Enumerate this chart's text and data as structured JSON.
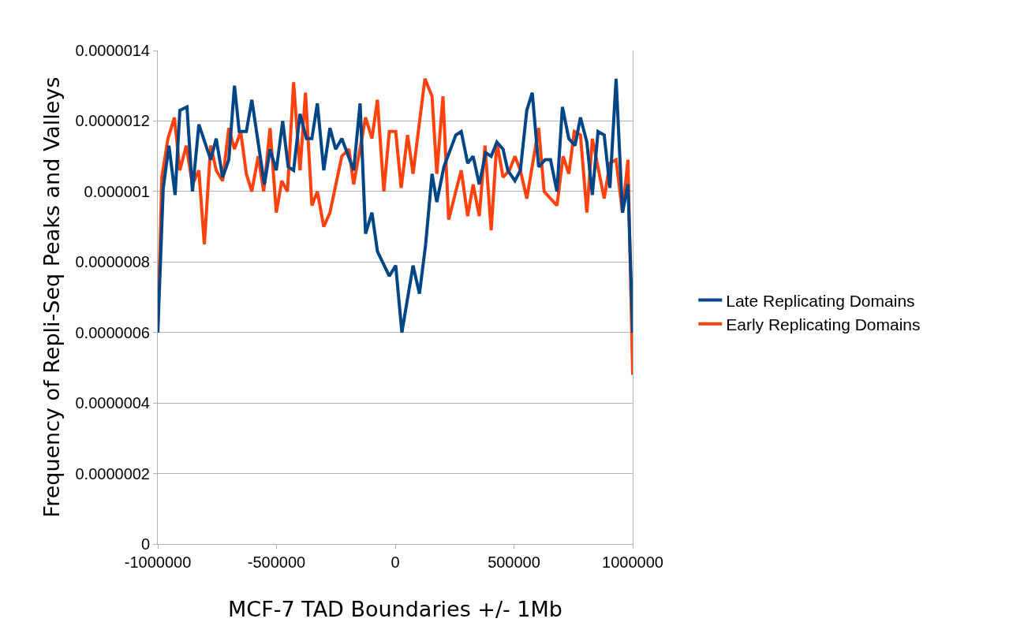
{
  "chart_data": {
    "type": "line",
    "xlabel": "MCF-7 TAD Boundaries +/- 1Mb",
    "ylabel": "Frequency of Repli-Seq Peaks and Valleys",
    "xlim": [
      -1000000,
      1000000
    ],
    "xticks": [
      -1000000,
      -500000,
      0,
      500000,
      1000000
    ],
    "ylim": [
      0,
      1.4e-06
    ],
    "yticks": [
      0,
      {
        "value": 2e-07,
        "label": "0.0000002"
      },
      {
        "value": 4e-07,
        "label": "0.0000004"
      },
      {
        "value": 6e-07,
        "label": "0.0000006"
      },
      {
        "value": 8e-07,
        "label": "0.0000008"
      },
      {
        "value": 1e-06,
        "label": "0.000001"
      },
      {
        "value": 1.2e-06,
        "label": "0.0000012"
      },
      {
        "value": 1.4e-06,
        "label": "0.0000014"
      }
    ],
    "grid": "y",
    "legend": "right",
    "marker": "none",
    "line_style": "solid",
    "series": [
      {
        "name": "Late Replicating Domains",
        "color": "#004586",
        "x": [
          -1000000,
          -977000,
          -953000,
          -927000,
          -907000,
          -877000,
          -854000,
          -827000,
          -777000,
          -754000,
          -727000,
          -701000,
          -677000,
          -657000,
          -627000,
          -604000,
          -551000,
          -527000,
          -501000,
          -474000,
          -451000,
          -428000,
          -401000,
          -374000,
          -351000,
          -328000,
          -301000,
          -275000,
          -251000,
          -225000,
          -175000,
          -148000,
          -125000,
          -98000,
          -75000,
          -25000,
          2000,
          28000,
          75000,
          102000,
          128000,
          155000,
          175000,
          205000,
          255000,
          278000,
          305000,
          328000,
          354000,
          381000,
          404000,
          428000,
          454000,
          474000,
          504000,
          527000,
          554000,
          577000,
          604000,
          631000,
          654000,
          681000,
          704000,
          731000,
          757000,
          780000,
          807000,
          830000,
          854000,
          880000,
          904000,
          930000,
          957000,
          980000,
          1000000
        ],
        "values": [
          6e-07,
          1.01e-06,
          1.13e-06,
          9.9e-07,
          1.23e-06,
          1.24e-06,
          1e-06,
          1.19e-06,
          1.09e-06,
          1.15e-06,
          1.04e-06,
          1.09e-06,
          1.3e-06,
          1.17e-06,
          1.17e-06,
          1.26e-06,
          1.02e-06,
          1.12e-06,
          1.06e-06,
          1.2e-06,
          1.07e-06,
          1.06e-06,
          1.22e-06,
          1.15e-06,
          1.15e-06,
          1.25e-06,
          1.06e-06,
          1.18e-06,
          1.12e-06,
          1.15e-06,
          1.06e-06,
          1.25e-06,
          8.8e-07,
          9.4e-07,
          8.3e-07,
          7.6e-07,
          7.9e-07,
          6e-07,
          7.9e-07,
          7.1e-07,
          8.5e-07,
          1.05e-06,
          9.7e-07,
          1.07e-06,
          1.16e-06,
          1.17e-06,
          1.08e-06,
          1.1e-06,
          1.02e-06,
          1.11e-06,
          1.1e-06,
          1.14e-06,
          1.12e-06,
          1.06e-06,
          1.03e-06,
          1.06e-06,
          1.23e-06,
          1.28e-06,
          1.07e-06,
          1.09e-06,
          1.09e-06,
          1e-06,
          1.24e-06,
          1.15e-06,
          1.13e-06,
          1.21e-06,
          1.14e-06,
          9.9e-07,
          1.17e-06,
          1.16e-06,
          1.01e-06,
          1.32e-06,
          9.4e-07,
          1.02e-06,
          6e-07
        ]
      },
      {
        "name": "Early Replicating Domains",
        "color": "#ff420e",
        "x": [
          -1000000,
          -983000,
          -957000,
          -930000,
          -907000,
          -880000,
          -854000,
          -827000,
          -804000,
          -777000,
          -754000,
          -727000,
          -701000,
          -677000,
          -651000,
          -627000,
          -604000,
          -577000,
          -554000,
          -527000,
          -501000,
          -478000,
          -454000,
          -428000,
          -401000,
          -378000,
          -351000,
          -328000,
          -301000,
          -275000,
          -225000,
          -195000,
          -175000,
          -125000,
          -98000,
          -75000,
          -48000,
          -25000,
          2000,
          25000,
          52000,
          75000,
          125000,
          155000,
          175000,
          201000,
          225000,
          255000,
          278000,
          305000,
          328000,
          354000,
          378000,
          404000,
          428000,
          454000,
          481000,
          504000,
          527000,
          554000,
          604000,
          627000,
          654000,
          681000,
          707000,
          731000,
          754000,
          780000,
          807000,
          830000,
          880000,
          904000,
          930000,
          957000,
          980000,
          1000000
        ],
        "values": [
          6e-07,
          1.04e-06,
          1.15e-06,
          1.21e-06,
          1.06e-06,
          1.13e-06,
          1.02e-06,
          1.06e-06,
          8.5e-07,
          1.13e-06,
          1.06e-06,
          1.03e-06,
          1.18e-06,
          1.12e-06,
          1.17e-06,
          1.05e-06,
          1e-06,
          1.1e-06,
          1e-06,
          1.18e-06,
          9.4e-07,
          1.03e-06,
          1e-06,
          1.31e-06,
          1.06e-06,
          1.28e-06,
          9.6e-07,
          1e-06,
          9e-07,
          9.4e-07,
          1.1e-06,
          1.12e-06,
          1.02e-06,
          1.21e-06,
          1.15e-06,
          1.26e-06,
          1e-06,
          1.17e-06,
          1.17e-06,
          1.01e-06,
          1.16e-06,
          1.05e-06,
          1.32e-06,
          1.27e-06,
          1.05e-06,
          1.27e-06,
          9.2e-07,
          1e-06,
          1.06e-06,
          9.3e-07,
          1.02e-06,
          9.3e-07,
          1.13e-06,
          8.9e-07,
          1.14e-06,
          1.04e-06,
          1.06e-06,
          1.1e-06,
          1.06e-06,
          9.8e-07,
          1.18e-06,
          1e-06,
          9.8e-07,
          9.6e-07,
          1.1e-06,
          1.05e-06,
          1.17e-06,
          1.16e-06,
          9.4e-07,
          1.15e-06,
          9.8e-07,
          1.08e-06,
          1.09e-06,
          9.4e-07,
          1.09e-06,
          4.8e-07
        ]
      }
    ]
  }
}
